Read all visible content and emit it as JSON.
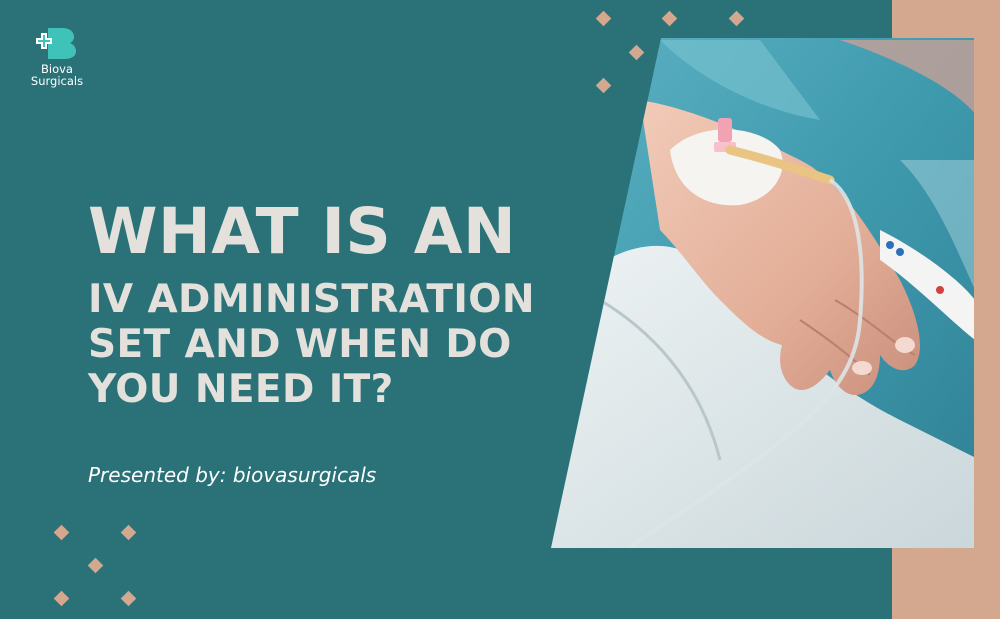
{
  "brand": {
    "name_line1": "Biova",
    "name_line2": "Surgicals",
    "logo_icon": "medical-cross-b-logo-icon"
  },
  "headline": {
    "line1": "WHAT IS AN",
    "line2": "IV ADMINISTRATION",
    "line3": "SET AND WHEN DO",
    "line4": "YOU NEED IT?"
  },
  "presenter": "Presented by: biovasurgicals",
  "colors": {
    "background": "#2a7278",
    "accent": "#d4a78f",
    "headline": "#e4e1dc",
    "logo": "#3fc3b8"
  },
  "decor": {
    "diamond_icon": "diamond-icon"
  }
}
